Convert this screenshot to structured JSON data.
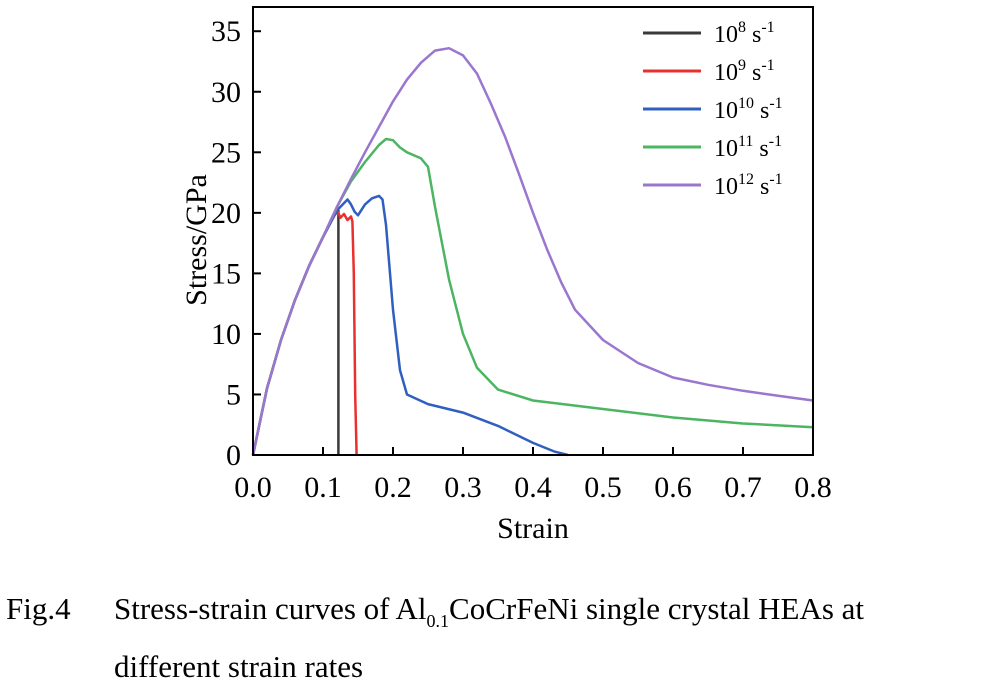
{
  "chart_data": {
    "type": "line",
    "xlabel": "Strain",
    "ylabel": "Stress/GPa",
    "xlim": [
      0,
      0.8
    ],
    "ylim": [
      0,
      37
    ],
    "xticks": [
      "0.0",
      "0.1",
      "0.2",
      "0.3",
      "0.4",
      "0.5",
      "0.6",
      "0.7",
      "0.8"
    ],
    "yticks": [
      "0",
      "5",
      "10",
      "15",
      "20",
      "25",
      "30",
      "35"
    ],
    "legend_position": "top-right",
    "series": [
      {
        "base": "10",
        "exp": "8",
        "unit": "s",
        "unit_exp": "-1",
        "color": "#3a3a3a",
        "x": [
          0,
          0.02,
          0.04,
          0.06,
          0.08,
          0.1,
          0.115,
          0.122,
          0.122
        ],
        "y": [
          0,
          5.5,
          9.5,
          12.8,
          15.6,
          18.0,
          19.7,
          20.2,
          0
        ]
      },
      {
        "base": "10",
        "exp": "9",
        "unit": "s",
        "unit_exp": "-1",
        "color": "#e8312f",
        "x": [
          0,
          0.02,
          0.04,
          0.06,
          0.08,
          0.1,
          0.12,
          0.125,
          0.13,
          0.135,
          0.14,
          0.142,
          0.144,
          0.146,
          0.148
        ],
        "y": [
          0,
          5.5,
          9.5,
          12.8,
          15.6,
          18.0,
          20.2,
          19.6,
          19.9,
          19.4,
          19.7,
          19.3,
          15.0,
          5.0,
          0
        ]
      },
      {
        "base": "10",
        "exp": "10",
        "unit": "s",
        "unit_exp": "-1",
        "color": "#2f5fbf",
        "x": [
          0,
          0.02,
          0.04,
          0.06,
          0.08,
          0.1,
          0.12,
          0.135,
          0.14,
          0.145,
          0.15,
          0.16,
          0.17,
          0.18,
          0.185,
          0.19,
          0.2,
          0.21,
          0.22,
          0.25,
          0.3,
          0.35,
          0.4,
          0.43,
          0.45
        ],
        "y": [
          0,
          5.5,
          9.5,
          12.8,
          15.6,
          18.0,
          20.2,
          21.1,
          20.7,
          20.1,
          19.8,
          20.7,
          21.2,
          21.4,
          21.1,
          19.0,
          12.0,
          7.0,
          5.0,
          4.2,
          3.5,
          2.4,
          1.0,
          0.3,
          0
        ]
      },
      {
        "base": "10",
        "exp": "11",
        "unit": "s",
        "unit_exp": "-1",
        "color": "#4cb562",
        "x": [
          0,
          0.02,
          0.04,
          0.06,
          0.08,
          0.1,
          0.12,
          0.14,
          0.16,
          0.18,
          0.19,
          0.2,
          0.21,
          0.22,
          0.24,
          0.25,
          0.26,
          0.28,
          0.3,
          0.32,
          0.35,
          0.4,
          0.5,
          0.6,
          0.7,
          0.8
        ],
        "y": [
          0,
          5.5,
          9.5,
          12.8,
          15.6,
          18.0,
          20.5,
          22.6,
          24.2,
          25.6,
          26.1,
          26.0,
          25.4,
          25.0,
          24.5,
          23.8,
          20.5,
          14.5,
          10.0,
          7.2,
          5.4,
          4.5,
          3.8,
          3.1,
          2.6,
          2.3
        ]
      },
      {
        "base": "10",
        "exp": "12",
        "unit": "s",
        "unit_exp": "-1",
        "color": "#9a76cf",
        "x": [
          0,
          0.02,
          0.04,
          0.06,
          0.08,
          0.1,
          0.12,
          0.14,
          0.16,
          0.18,
          0.2,
          0.22,
          0.24,
          0.26,
          0.28,
          0.3,
          0.32,
          0.34,
          0.36,
          0.38,
          0.4,
          0.42,
          0.44,
          0.46,
          0.5,
          0.55,
          0.6,
          0.65,
          0.7,
          0.75,
          0.8
        ],
        "y": [
          0,
          5.5,
          9.5,
          12.8,
          15.6,
          18.0,
          20.5,
          22.8,
          25.0,
          27.1,
          29.2,
          31.0,
          32.4,
          33.4,
          33.6,
          33.0,
          31.5,
          29.0,
          26.3,
          23.2,
          20.0,
          17.0,
          14.3,
          12.0,
          9.5,
          7.6,
          6.4,
          5.8,
          5.3,
          4.9,
          4.5
        ]
      }
    ]
  },
  "caption": {
    "label": "Fig.4",
    "text_before": "Stress-strain curves of Al",
    "subscript": "0.1",
    "text_after": "CoCrFeNi single crystal HEAs at",
    "line2": "different strain rates"
  }
}
